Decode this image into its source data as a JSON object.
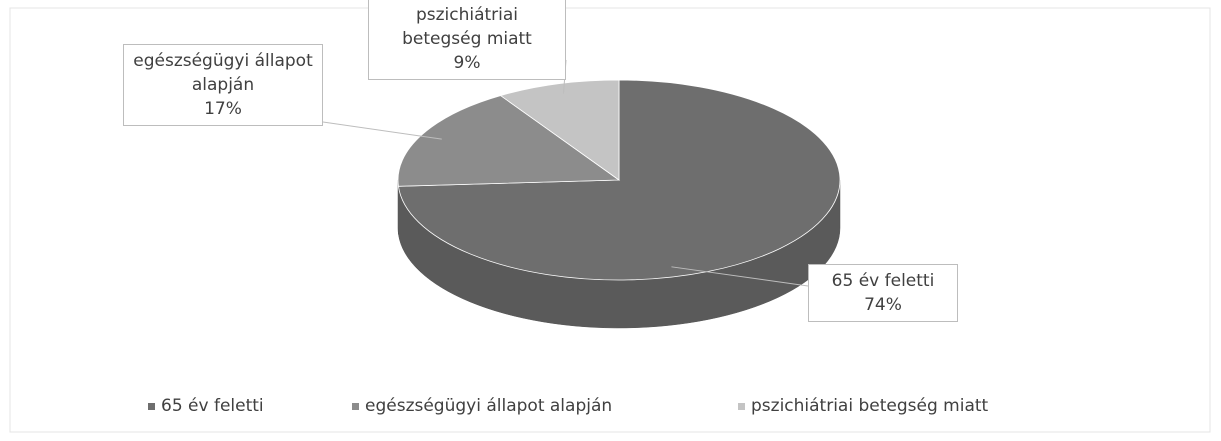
{
  "chart_data": {
    "type": "pie",
    "categories": [
      "65 év feletti",
      "egészségügyi állapot alapján",
      "pszichiátriai betegség miatt"
    ],
    "values": [
      74,
      17,
      9
    ],
    "value_labels": [
      "74%",
      "17%",
      "9%"
    ],
    "colors": [
      "#6e6e6e",
      "#8c8c8c",
      "#c4c4c4"
    ],
    "legend": "bottom"
  }
}
